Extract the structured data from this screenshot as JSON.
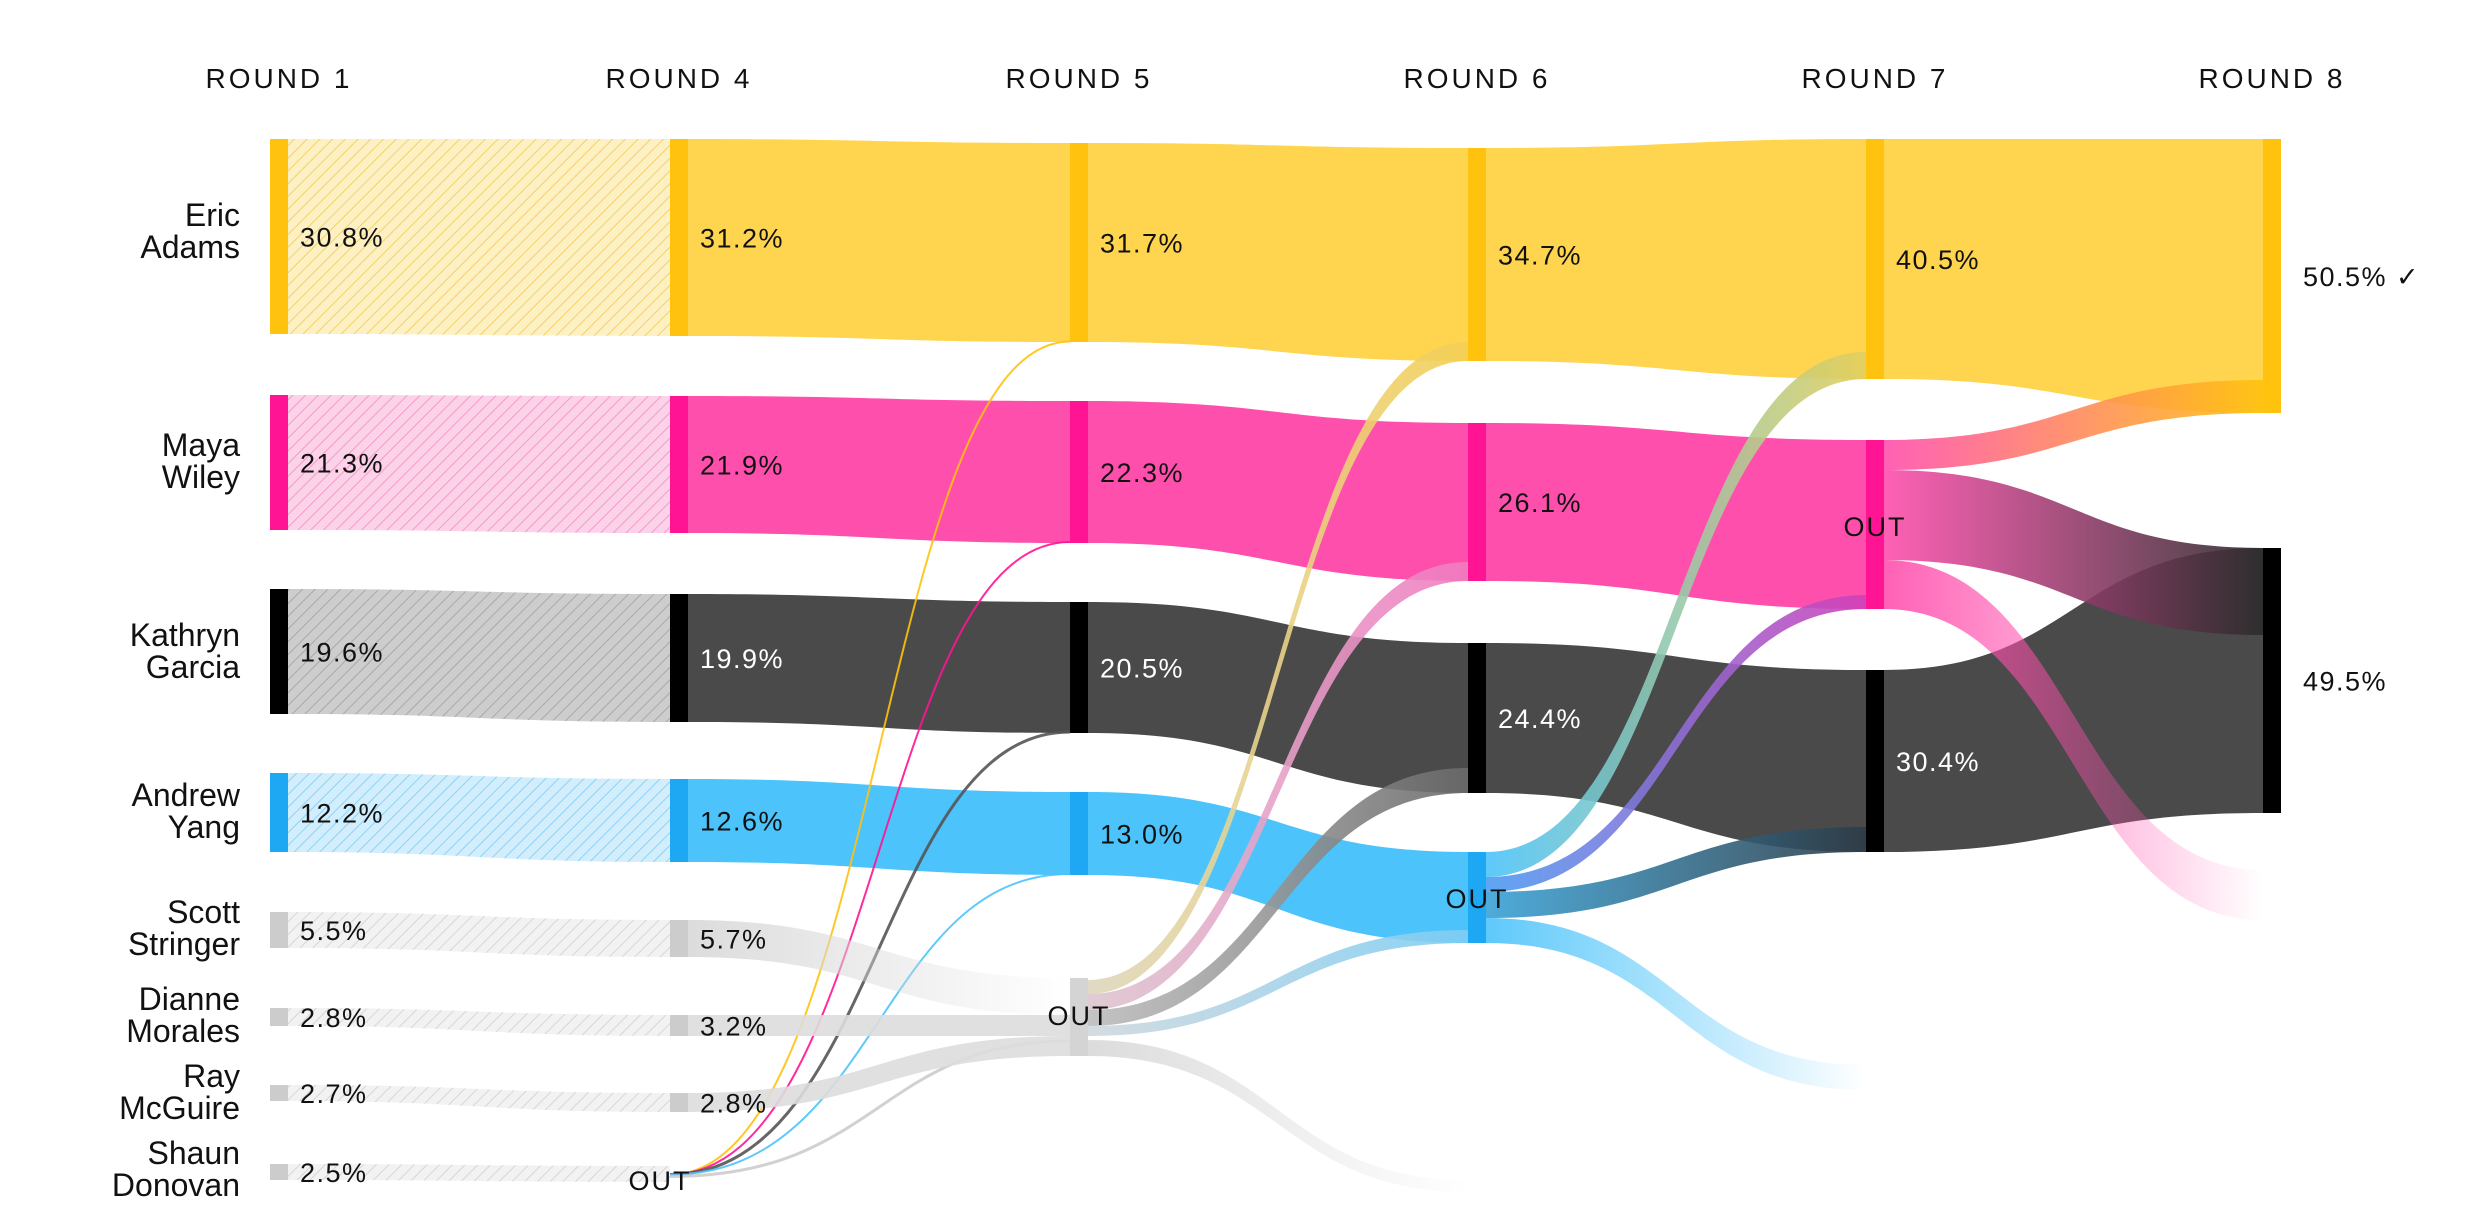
{
  "chart_data": {
    "type": "sankey",
    "rounds": [
      "ROUND 1",
      "ROUND 4",
      "ROUND 5",
      "ROUND 6",
      "ROUND 7",
      "ROUND 8"
    ],
    "out_label": "OUT",
    "winner_mark": "✓",
    "candidates": [
      {
        "key": "adams",
        "name": [
          "Eric",
          "Adams"
        ],
        "color": "#ffc20e",
        "flow_color": "#ffd54f",
        "values": [
          "30.8%",
          "31.2%",
          "31.7%",
          "34.7%",
          "40.5%",
          "50.5%"
        ],
        "eliminated_round": null,
        "winner": true
      },
      {
        "key": "wiley",
        "name": [
          "Maya",
          "Wiley"
        ],
        "color": "#ff1493",
        "flow_color": "#ff4fad",
        "values": [
          "21.3%",
          "21.9%",
          "22.3%",
          "26.1%",
          null,
          null
        ],
        "eliminated_round": "ROUND 7"
      },
      {
        "key": "garcia",
        "name": [
          "Kathryn",
          "Garcia"
        ],
        "color": "#000000",
        "flow_color": "#4a4a4a",
        "values": [
          "19.6%",
          "19.9%",
          "20.5%",
          "24.4%",
          "30.4%",
          "49.5%"
        ],
        "eliminated_round": null
      },
      {
        "key": "yang",
        "name": [
          "Andrew",
          "Yang"
        ],
        "color": "#1ea7f2",
        "flow_color": "#4cc3fa",
        "values": [
          "12.2%",
          "12.6%",
          "13.0%",
          null,
          null,
          null
        ],
        "eliminated_round": "ROUND 6"
      },
      {
        "key": "stringer",
        "name": [
          "Scott",
          "Stringer"
        ],
        "color": "#cccccc",
        "flow_color": "#dddddd",
        "values": [
          "5.5%",
          "5.7%",
          null,
          null,
          null,
          null
        ],
        "eliminated_round": "ROUND 5"
      },
      {
        "key": "morales",
        "name": [
          "Dianne",
          "Morales"
        ],
        "color": "#cccccc",
        "flow_color": "#dddddd",
        "values": [
          "2.8%",
          "3.2%",
          null,
          null,
          null,
          null
        ],
        "eliminated_round": "ROUND 5"
      },
      {
        "key": "mcguire",
        "name": [
          "Ray",
          "McGuire"
        ],
        "color": "#cccccc",
        "flow_color": "#dddddd",
        "values": [
          "2.7%",
          "2.8%",
          null,
          null,
          null,
          null
        ],
        "eliminated_round": "ROUND 5"
      },
      {
        "key": "donovan",
        "name": [
          "Shaun",
          "Donovan"
        ],
        "color": "#cccccc",
        "flow_color": "#dddddd",
        "values": [
          "2.5%",
          null,
          null,
          null,
          null,
          null
        ],
        "eliminated_round": "ROUND 4"
      }
    ]
  }
}
